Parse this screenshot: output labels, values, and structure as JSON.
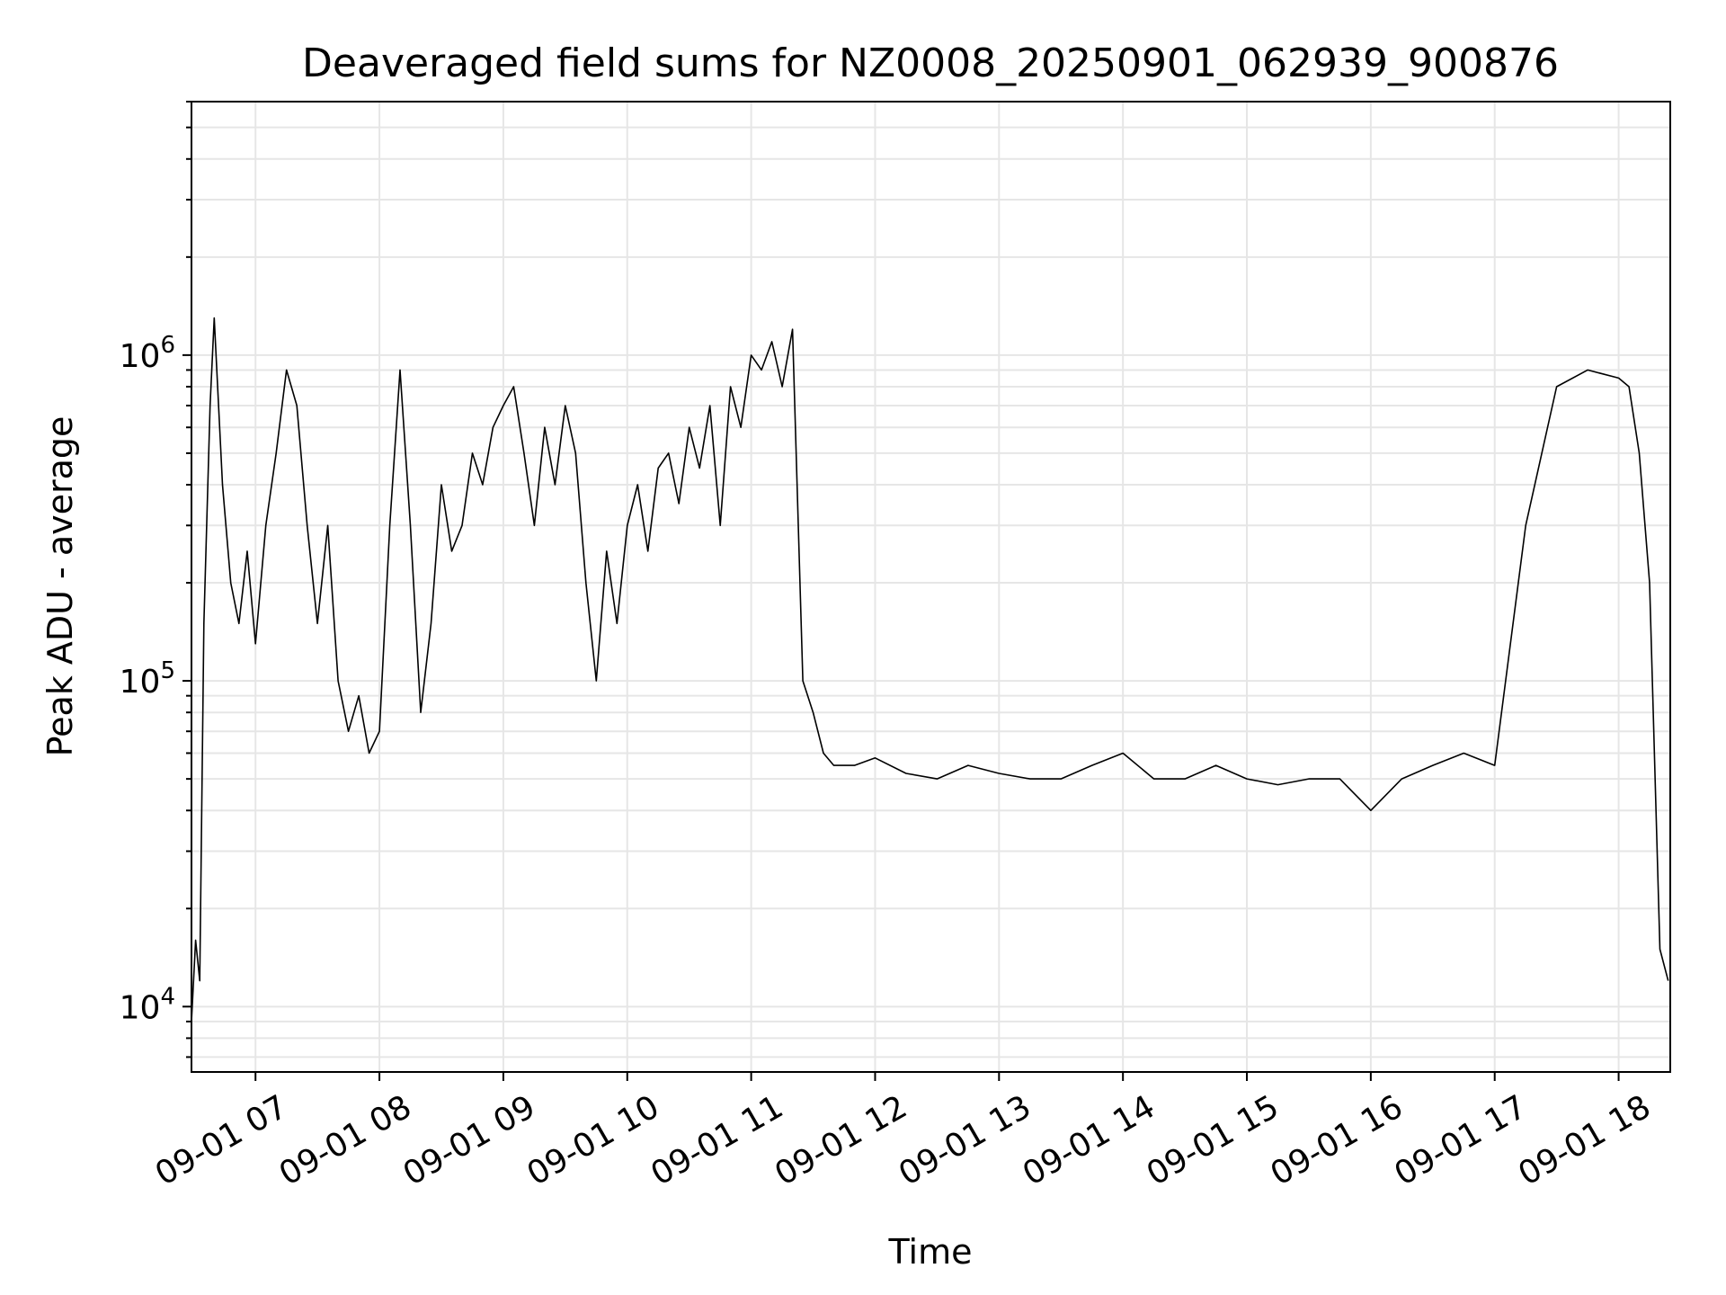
{
  "chart_data": {
    "type": "line",
    "title": "Deaveraged field sums for NZ0008_20250901_062939_900876",
    "xlabel": "Time",
    "ylabel": "Peak ADU - average",
    "yscale": "log",
    "ylim": [
      6300,
      6000000
    ],
    "xlim": [
      "2025-09-01 06:29",
      "2025-09-01 18:25"
    ],
    "grid": true,
    "line_color": "#000000",
    "grid_color": "#e6e6e6",
    "y_ticks": [
      {
        "value": 10000,
        "base": "10",
        "exp": "4"
      },
      {
        "value": 100000,
        "base": "10",
        "exp": "5"
      },
      {
        "value": 1000000,
        "base": "10",
        "exp": "6"
      }
    ],
    "x_ticks": [
      {
        "value": "2025-09-01 07:00",
        "label": "09-01 07"
      },
      {
        "value": "2025-09-01 08:00",
        "label": "09-01 08"
      },
      {
        "value": "2025-09-01 09:00",
        "label": "09-01 09"
      },
      {
        "value": "2025-09-01 10:00",
        "label": "09-01 10"
      },
      {
        "value": "2025-09-01 11:00",
        "label": "09-01 11"
      },
      {
        "value": "2025-09-01 12:00",
        "label": "09-01 12"
      },
      {
        "value": "2025-09-01 13:00",
        "label": "09-01 13"
      },
      {
        "value": "2025-09-01 14:00",
        "label": "09-01 14"
      },
      {
        "value": "2025-09-01 15:00",
        "label": "09-01 15"
      },
      {
        "value": "2025-09-01 16:00",
        "label": "09-01 16"
      },
      {
        "value": "2025-09-01 17:00",
        "label": "09-01 17"
      },
      {
        "value": "2025-09-01 18:00",
        "label": "09-01 18"
      }
    ],
    "series": [
      {
        "points": [
          [
            "2025-09-01 06:29",
            9000
          ],
          [
            "2025-09-01 06:31",
            16000
          ],
          [
            "2025-09-01 06:33",
            12000
          ],
          [
            "2025-09-01 06:35",
            150000
          ],
          [
            "2025-09-01 06:38",
            700000
          ],
          [
            "2025-09-01 06:40",
            1300000
          ],
          [
            "2025-09-01 06:44",
            400000
          ],
          [
            "2025-09-01 06:48",
            200000
          ],
          [
            "2025-09-01 06:52",
            150000
          ],
          [
            "2025-09-01 06:56",
            250000
          ],
          [
            "2025-09-01 07:00",
            130000
          ],
          [
            "2025-09-01 07:05",
            300000
          ],
          [
            "2025-09-01 07:10",
            500000
          ],
          [
            "2025-09-01 07:15",
            900000
          ],
          [
            "2025-09-01 07:20",
            700000
          ],
          [
            "2025-09-01 07:25",
            300000
          ],
          [
            "2025-09-01 07:30",
            150000
          ],
          [
            "2025-09-01 07:35",
            300000
          ],
          [
            "2025-09-01 07:40",
            100000
          ],
          [
            "2025-09-01 07:45",
            70000
          ],
          [
            "2025-09-01 07:50",
            90000
          ],
          [
            "2025-09-01 07:55",
            60000
          ],
          [
            "2025-09-01 08:00",
            70000
          ],
          [
            "2025-09-01 08:05",
            300000
          ],
          [
            "2025-09-01 08:10",
            900000
          ],
          [
            "2025-09-01 08:15",
            300000
          ],
          [
            "2025-09-01 08:20",
            80000
          ],
          [
            "2025-09-01 08:25",
            150000
          ],
          [
            "2025-09-01 08:30",
            400000
          ],
          [
            "2025-09-01 08:35",
            250000
          ],
          [
            "2025-09-01 08:40",
            300000
          ],
          [
            "2025-09-01 08:45",
            500000
          ],
          [
            "2025-09-01 08:50",
            400000
          ],
          [
            "2025-09-01 08:55",
            600000
          ],
          [
            "2025-09-01 09:00",
            700000
          ],
          [
            "2025-09-01 09:05",
            800000
          ],
          [
            "2025-09-01 09:10",
            500000
          ],
          [
            "2025-09-01 09:15",
            300000
          ],
          [
            "2025-09-01 09:20",
            600000
          ],
          [
            "2025-09-01 09:25",
            400000
          ],
          [
            "2025-09-01 09:30",
            700000
          ],
          [
            "2025-09-01 09:35",
            500000
          ],
          [
            "2025-09-01 09:40",
            200000
          ],
          [
            "2025-09-01 09:45",
            100000
          ],
          [
            "2025-09-01 09:50",
            250000
          ],
          [
            "2025-09-01 09:55",
            150000
          ],
          [
            "2025-09-01 10:00",
            300000
          ],
          [
            "2025-09-01 10:05",
            400000
          ],
          [
            "2025-09-01 10:10",
            250000
          ],
          [
            "2025-09-01 10:15",
            450000
          ],
          [
            "2025-09-01 10:20",
            500000
          ],
          [
            "2025-09-01 10:25",
            350000
          ],
          [
            "2025-09-01 10:30",
            600000
          ],
          [
            "2025-09-01 10:35",
            450000
          ],
          [
            "2025-09-01 10:40",
            700000
          ],
          [
            "2025-09-01 10:45",
            300000
          ],
          [
            "2025-09-01 10:50",
            800000
          ],
          [
            "2025-09-01 10:55",
            600000
          ],
          [
            "2025-09-01 11:00",
            1000000
          ],
          [
            "2025-09-01 11:05",
            900000
          ],
          [
            "2025-09-01 11:10",
            1100000
          ],
          [
            "2025-09-01 11:15",
            800000
          ],
          [
            "2025-09-01 11:20",
            1200000
          ],
          [
            "2025-09-01 11:25",
            100000
          ],
          [
            "2025-09-01 11:30",
            80000
          ],
          [
            "2025-09-01 11:35",
            60000
          ],
          [
            "2025-09-01 11:40",
            55000
          ],
          [
            "2025-09-01 11:50",
            55000
          ],
          [
            "2025-09-01 12:00",
            58000
          ],
          [
            "2025-09-01 12:15",
            52000
          ],
          [
            "2025-09-01 12:30",
            50000
          ],
          [
            "2025-09-01 12:45",
            55000
          ],
          [
            "2025-09-01 13:00",
            52000
          ],
          [
            "2025-09-01 13:15",
            50000
          ],
          [
            "2025-09-01 13:30",
            50000
          ],
          [
            "2025-09-01 13:45",
            55000
          ],
          [
            "2025-09-01 14:00",
            60000
          ],
          [
            "2025-09-01 14:15",
            50000
          ],
          [
            "2025-09-01 14:30",
            50000
          ],
          [
            "2025-09-01 14:45",
            55000
          ],
          [
            "2025-09-01 15:00",
            50000
          ],
          [
            "2025-09-01 15:15",
            48000
          ],
          [
            "2025-09-01 15:30",
            50000
          ],
          [
            "2025-09-01 15:45",
            50000
          ],
          [
            "2025-09-01 16:00",
            40000
          ],
          [
            "2025-09-01 16:15",
            50000
          ],
          [
            "2025-09-01 16:30",
            55000
          ],
          [
            "2025-09-01 16:45",
            60000
          ],
          [
            "2025-09-01 17:00",
            55000
          ],
          [
            "2025-09-01 17:15",
            300000
          ],
          [
            "2025-09-01 17:30",
            800000
          ],
          [
            "2025-09-01 17:45",
            900000
          ],
          [
            "2025-09-01 18:00",
            850000
          ],
          [
            "2025-09-01 18:05",
            800000
          ],
          [
            "2025-09-01 18:10",
            500000
          ],
          [
            "2025-09-01 18:15",
            200000
          ],
          [
            "2025-09-01 18:20",
            15000
          ],
          [
            "2025-09-01 18:24",
            12000
          ]
        ]
      }
    ]
  }
}
